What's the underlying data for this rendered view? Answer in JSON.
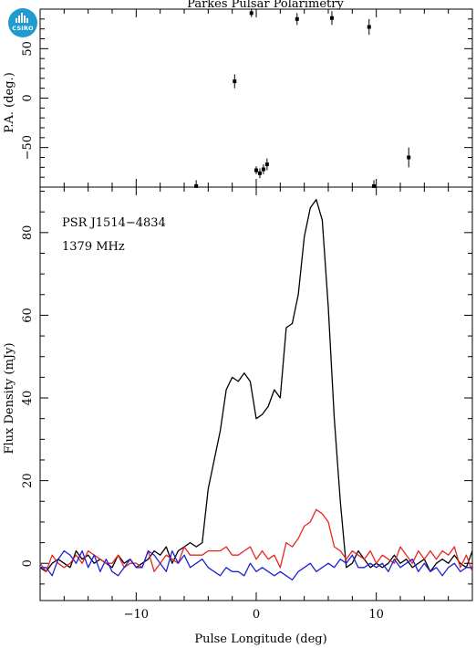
{
  "logo": {
    "text": "CSIRO",
    "color": "#1f9bd1"
  },
  "chart_data": [
    {
      "type": "scatter",
      "title": "Parkes Pulsar Polarimetry",
      "xlabel": "",
      "ylabel": "P.A. (deg.)",
      "xlim": [
        -18,
        18
      ],
      "ylim": [
        -90,
        90
      ],
      "yticks": [
        -50,
        0,
        50
      ],
      "error_bars": true,
      "points": [
        {
          "x": -5.0,
          "y": -89,
          "err": 6
        },
        {
          "x": -1.8,
          "y": 17,
          "err": 7
        },
        {
          "x": -0.4,
          "y": 86,
          "err": 4
        },
        {
          "x": 0.0,
          "y": -73,
          "err": 4
        },
        {
          "x": 0.3,
          "y": -76,
          "err": 5
        },
        {
          "x": 0.6,
          "y": -72,
          "err": 5
        },
        {
          "x": 0.9,
          "y": -67,
          "err": 6
        },
        {
          "x": 3.4,
          "y": 80,
          "err": 6
        },
        {
          "x": 6.3,
          "y": 81,
          "err": 7
        },
        {
          "x": 9.4,
          "y": 72,
          "err": 8
        },
        {
          "x": 9.8,
          "y": -89,
          "err": 6
        },
        {
          "x": 12.7,
          "y": -60,
          "err": 10
        }
      ]
    },
    {
      "type": "line",
      "title": "",
      "xlabel": "Pulse Longitude (deg)",
      "ylabel": "Flux Density (mJy)",
      "xlim": [
        -18,
        18
      ],
      "ylim": [
        -9,
        91
      ],
      "xticks": [
        -10,
        0,
        10
      ],
      "yticks": [
        0,
        20,
        40,
        60,
        80
      ],
      "annotations": [
        "PSR J1514−4834",
        "1379 MHz"
      ],
      "x_start": -18,
      "x_step": 0.5,
      "series": [
        {
          "color": "#000000",
          "values": [
            -1,
            -2,
            0,
            1,
            0,
            -1,
            3,
            1,
            2,
            0,
            1,
            0,
            -1,
            2,
            0,
            1,
            -1,
            0,
            1,
            3,
            2,
            4,
            0,
            3,
            4,
            5,
            4,
            5,
            18,
            25,
            32,
            42,
            45,
            44,
            46,
            44,
            35,
            36,
            38,
            42,
            40,
            57,
            58,
            65,
            79,
            86,
            88,
            83,
            62,
            35,
            15,
            -1,
            0,
            3,
            1,
            -1,
            0,
            -1,
            0,
            2,
            0,
            1,
            -1,
            0,
            1,
            -2,
            0,
            1,
            0,
            2,
            0,
            -1,
            3
          ]
        },
        {
          "color": "#e8251f",
          "values": [
            0,
            -2,
            2,
            0,
            -1,
            0,
            2,
            0,
            3,
            2,
            1,
            0,
            0,
            2,
            -1,
            0,
            0,
            -1,
            3,
            -2,
            0,
            2,
            1,
            0,
            4,
            2,
            2,
            2,
            3,
            3,
            3,
            4,
            2,
            2,
            3,
            4,
            1,
            3,
            1,
            2,
            -1,
            5,
            4,
            6,
            9,
            10,
            13,
            12,
            10,
            4,
            3,
            1,
            3,
            2,
            1,
            3,
            0,
            2,
            1,
            0,
            4,
            2,
            0,
            3,
            1,
            3,
            1,
            3,
            2,
            4,
            -1,
            2,
            -2
          ]
        },
        {
          "color": "#1e22d8",
          "values": [
            -1,
            -1,
            -3,
            1,
            3,
            2,
            0,
            3,
            -1,
            2,
            -2,
            1,
            -2,
            -3,
            -1,
            1,
            -1,
            -1,
            3,
            2,
            0,
            -2,
            3,
            0,
            2,
            -1,
            0,
            1,
            -1,
            -2,
            -3,
            -1,
            -2,
            -2,
            -3,
            0,
            -2,
            -1,
            -2,
            -3,
            -2,
            -3,
            -4,
            -2,
            -1,
            0,
            -2,
            -1,
            0,
            -1,
            1,
            0,
            2,
            -1,
            -1,
            0,
            -1,
            0,
            -2,
            1,
            -1,
            0,
            1,
            -2,
            0,
            -2,
            -1,
            -3,
            -1,
            0,
            -2,
            -1,
            -1
          ]
        }
      ]
    }
  ]
}
